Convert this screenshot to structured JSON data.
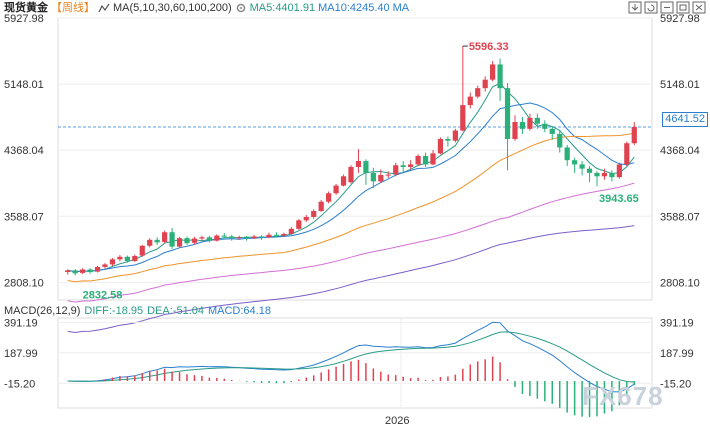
{
  "header": {
    "title": "现货黄金",
    "period": "【周线】",
    "ma_label": "MA(5,10,30,60,100,200)",
    "ma5": "MA5:4401.91",
    "ma10": "MA10:4245.40",
    "ma_next": "MA"
  },
  "macd_header": {
    "label": "MACD(26,12,9)",
    "diff": "DIFF:-18.95",
    "dea": "DEA:-51.04",
    "macd": "MACD:64.18"
  },
  "current_price": "4641.52",
  "watermark": "FX678",
  "colors": {
    "up": "#e04350",
    "down": "#2bb07a",
    "ma5": "#2a9a88",
    "ma10": "#2a7fd0",
    "ma30": "#f0932b",
    "ma60": "#d36fd6",
    "ma100": "#7b5fc9"
  },
  "chart_data": {
    "type": "candlestick",
    "x_axis_label": "2026",
    "y_ticks_left": [
      "5927.98",
      "5148.01",
      "4368.04",
      "3588.07",
      "2808.10"
    ],
    "y_ticks_right": [
      "5927.98",
      "5148.01",
      "4368.04",
      "3588.07",
      "2808.10"
    ],
    "ylim": [
      2600,
      5927.98
    ],
    "annotations": {
      "high": "5596.33",
      "low_recent": "3943.65",
      "low": "2832.58"
    },
    "current_line": 4641.52,
    "candles": [
      [
        2930,
        2950,
        2900,
        2960
      ],
      [
        2950,
        2915,
        2890,
        2965
      ],
      [
        2920,
        2960,
        2905,
        2975
      ],
      [
        2960,
        2930,
        2910,
        2975
      ],
      [
        2935,
        2990,
        2925,
        3005
      ],
      [
        2990,
        3020,
        2970,
        3035
      ],
      [
        3020,
        3080,
        3000,
        3095
      ],
      [
        3080,
        3110,
        3055,
        3130
      ],
      [
        3110,
        3060,
        3040,
        3125
      ],
      [
        3060,
        3120,
        3050,
        3135
      ],
      [
        3125,
        3240,
        3110,
        3250
      ],
      [
        3240,
        3310,
        3220,
        3330
      ],
      [
        3310,
        3280,
        3250,
        3340
      ],
      [
        3285,
        3400,
        3270,
        3420
      ],
      [
        3400,
        3230,
        3200,
        3450
      ],
      [
        3230,
        3330,
        3210,
        3345
      ],
      [
        3330,
        3270,
        3250,
        3350
      ],
      [
        3275,
        3325,
        3255,
        3345
      ],
      [
        3325,
        3340,
        3300,
        3360
      ],
      [
        3340,
        3300,
        3280,
        3360
      ],
      [
        3300,
        3360,
        3290,
        3375
      ],
      [
        3360,
        3350,
        3330,
        3390
      ],
      [
        3350,
        3330,
        3300,
        3370
      ],
      [
        3330,
        3340,
        3310,
        3360
      ],
      [
        3340,
        3330,
        3300,
        3355
      ],
      [
        3330,
        3350,
        3320,
        3370
      ],
      [
        3350,
        3340,
        3310,
        3365
      ],
      [
        3340,
        3370,
        3330,
        3395
      ],
      [
        3370,
        3360,
        3340,
        3400
      ],
      [
        3360,
        3380,
        3345,
        3395
      ],
      [
        3380,
        3440,
        3370,
        3460
      ],
      [
        3440,
        3540,
        3430,
        3555
      ],
      [
        3540,
        3580,
        3520,
        3605
      ],
      [
        3580,
        3650,
        3560,
        3670
      ],
      [
        3650,
        3760,
        3640,
        3780
      ],
      [
        3760,
        3860,
        3740,
        3880
      ],
      [
        3860,
        3950,
        3840,
        3970
      ],
      [
        3950,
        4060,
        3940,
        4080
      ],
      [
        3990,
        4170,
        3975,
        4190
      ],
      [
        4170,
        4240,
        4100,
        4380
      ],
      [
        4240,
        4100,
        3960,
        4260
      ],
      [
        4100,
        4000,
        3920,
        4160
      ],
      [
        4000,
        4075,
        3980,
        4140
      ],
      [
        4075,
        4080,
        4040,
        4120
      ],
      [
        4080,
        4190,
        4060,
        4220
      ],
      [
        4190,
        4170,
        4110,
        4240
      ],
      [
        4170,
        4200,
        4140,
        4250
      ],
      [
        4200,
        4300,
        4180,
        4320
      ],
      [
        4300,
        4200,
        4170,
        4340
      ],
      [
        4200,
        4330,
        4190,
        4370
      ],
      [
        4330,
        4500,
        4320,
        4520
      ],
      [
        4500,
        4480,
        4410,
        4530
      ],
      [
        4480,
        4600,
        4460,
        4620
      ],
      [
        4600,
        4900,
        4590,
        5596.33
      ],
      [
        4900,
        5000,
        4860,
        5050
      ],
      [
        5000,
        5100,
        4980,
        5130
      ],
      [
        5100,
        5200,
        5060,
        5240
      ],
      [
        5200,
        5380,
        5180,
        5420
      ],
      [
        5380,
        5100,
        4950,
        5450
      ],
      [
        5100,
        4500,
        4130,
        5160
      ],
      [
        4500,
        4700,
        4480,
        4780
      ],
      [
        4700,
        4620,
        4560,
        4760
      ],
      [
        4620,
        4750,
        4600,
        4800
      ],
      [
        4750,
        4680,
        4620,
        4800
      ],
      [
        4680,
        4620,
        4580,
        4720
      ],
      [
        4620,
        4560,
        4490,
        4650
      ],
      [
        4560,
        4400,
        4340,
        4600
      ],
      [
        4400,
        4250,
        4180,
        4430
      ],
      [
        4250,
        4200,
        4100,
        4280
      ],
      [
        4200,
        4150,
        4070,
        4240
      ],
      [
        4150,
        4100,
        3990,
        4180
      ],
      [
        4100,
        4060,
        3943.65,
        4120
      ],
      [
        4060,
        4100,
        4020,
        4150
      ],
      [
        4100,
        4050,
        4000,
        4130
      ],
      [
        4050,
        4200,
        4030,
        4220
      ],
      [
        4200,
        4450,
        4180,
        4470
      ],
      [
        4450,
        4641.52,
        4430,
        4700
      ]
    ]
  },
  "macd_data": {
    "y_ticks": [
      "391.19",
      "187.99",
      "-15.20"
    ],
    "ylim": [
      -180,
      420
    ]
  }
}
